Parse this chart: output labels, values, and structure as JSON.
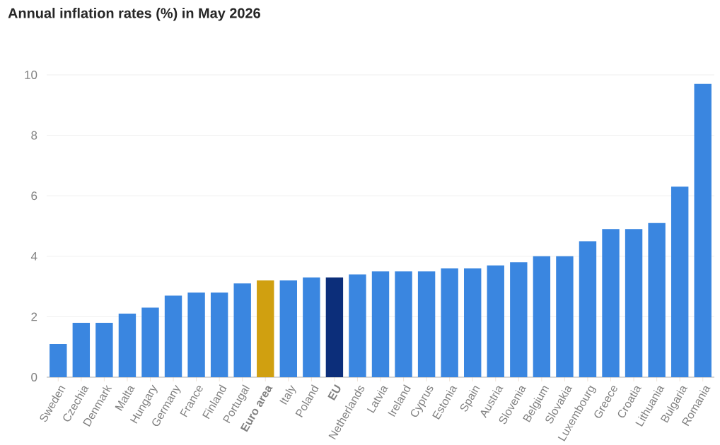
{
  "chart_data": {
    "type": "bar",
    "title": "Annual inflation rates (%) in May 2026",
    "categories": [
      "Sweden",
      "Czechia",
      "Denmark",
      "Malta",
      "Hungary",
      "Germany",
      "France",
      "Finland",
      "Portugal",
      "**Euro area**",
      "Italy",
      "Poland",
      "**EU**",
      "Netherlands",
      "Latvia",
      "Ireland",
      "Cyprus",
      "Estonia",
      "Spain",
      "Austria",
      "Slovenia",
      "Belgium",
      "Slovakia",
      "Luxembourg",
      "Greece",
      "Croatia",
      "Lithuania",
      "Bulgaria",
      "Romania"
    ],
    "values": [
      1.1,
      1.8,
      1.8,
      2.1,
      2.3,
      2.7,
      2.8,
      2.8,
      3.1,
      3.2,
      3.2,
      3.3,
      3.3,
      3.4,
      3.5,
      3.5,
      3.5,
      3.6,
      3.6,
      3.7,
      3.8,
      4.0,
      4.0,
      4.5,
      4.9,
      4.9,
      5.1,
      6.3,
      9.7
    ],
    "colors": [
      "#3a86e0",
      "#3a86e0",
      "#3a86e0",
      "#3a86e0",
      "#3a86e0",
      "#3a86e0",
      "#3a86e0",
      "#3a86e0",
      "#3a86e0",
      "#d0a010",
      "#3a86e0",
      "#3a86e0",
      "#0c2e7a",
      "#3a86e0",
      "#3a86e0",
      "#3a86e0",
      "#3a86e0",
      "#3a86e0",
      "#3a86e0",
      "#3a86e0",
      "#3a86e0",
      "#3a86e0",
      "#3a86e0",
      "#3a86e0",
      "#3a86e0",
      "#3a86e0",
      "#3a86e0",
      "#3a86e0",
      "#3a86e0"
    ],
    "ylim": [
      0,
      10
    ],
    "yticks": [
      0,
      2,
      4,
      6,
      8,
      10
    ],
    "grid": "y"
  }
}
